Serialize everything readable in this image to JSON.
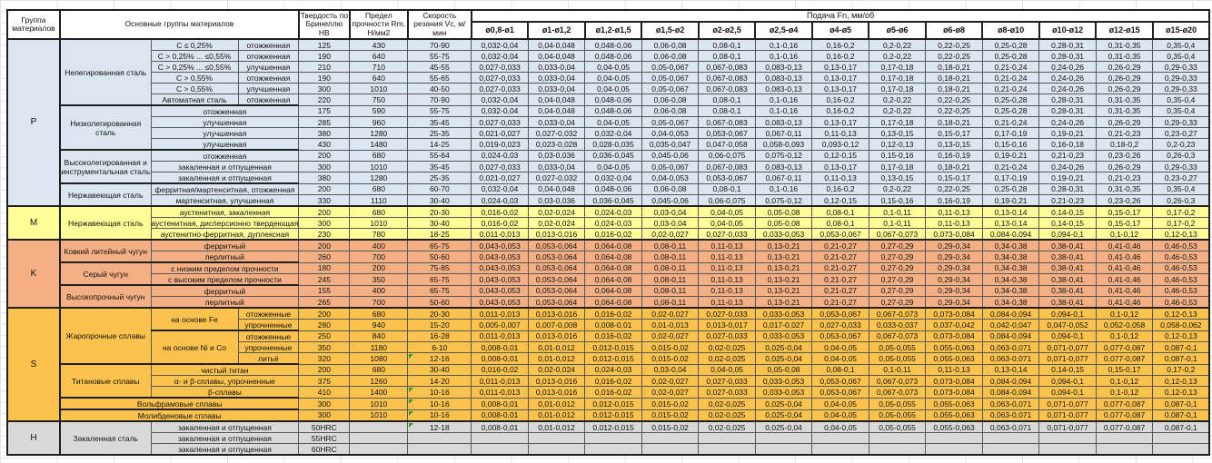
{
  "header": {
    "group": "Группа материалов",
    "materials": "Основные группы материалов",
    "hardness": "Твердость по Бринеллю HB",
    "strength": "Предел прочности Rm, Н/мм2",
    "speed": "Скорость резания Vc, м/мин",
    "feed": "Подача Fn, мм/об"
  },
  "diameters": [
    "ø0,8-ø1",
    "ø1-ø1,2",
    "ø1,2-ø1,5",
    "ø1,5-ø2",
    "ø2-ø2,5",
    "ø2,5-ø4",
    "ø4-ø5",
    "ø5-ø6",
    "ø6-ø8",
    "ø8-ø10",
    "ø10-ø12",
    "ø12-ø15",
    "ø15-ø20"
  ],
  "colors": {
    "section_p": "#dce6f1",
    "section_m": "#ffff99",
    "section_k": "#f4b084",
    "section_s": "#fbc34d",
    "section_h": "#d9d9d9",
    "flag": "#2f9e2f"
  },
  "feed_patterns": {
    "A": [
      "0,032-0,04",
      "0,04-0,048",
      "0,048-0,06",
      "0,06-0,08",
      "0,08-0,1",
      "0,1-0,16",
      "0,16-0,2",
      "0,2-0,22",
      "0,22-0,25",
      "0,25-0,28",
      "0,28-0,31",
      "0,31-0,35",
      "0,35-0,4"
    ],
    "B": [
      "0,027-0,033",
      "0,033-0,04",
      "0,04-0,05",
      "0,05-0,067",
      "0,067-0,083",
      "0,083-0,13",
      "0,13-0,17",
      "0,17-0,18",
      "0,18-0,21",
      "0,21-0,24",
      "0,24-0,26",
      "0,26-0,29",
      "0,29-0,33"
    ],
    "C": [
      "0,021-0,027",
      "0,027-0,032",
      "0,032-0,04",
      "0,04-0,053",
      "0,053-0,067",
      "0,067-0,11",
      "0,11-0,13",
      "0,13-0,15",
      "0,15-0,17",
      "0,17-0,19",
      "0,19-0,21",
      "0,21-0,23",
      "0,23-0,27"
    ],
    "D": [
      "0,019-0,023",
      "0,023-0,028",
      "0,028-0,035",
      "0,035-0,047",
      "0,047-0,058",
      "0,058-0,093",
      "0,093-0,12",
      "0,12-0,13",
      "0,13-0,15",
      "0,15-0,16",
      "0,16-0,18",
      "0,18-0,2",
      "0,2-0,23"
    ],
    "E": [
      "0,024-0,03",
      "0,03-0,036",
      "0,036-0,045",
      "0,045-0,06",
      "0,06-0,075",
      "0,075-0,12",
      "0,12-0,15",
      "0,15-0,16",
      "0,16-0,19",
      "0,19-0,21",
      "0,21-0,23",
      "0,23-0,26",
      "0,26-0,3"
    ],
    "F": [
      "0,016-0,02",
      "0,02-0,024",
      "0,024-0,03",
      "0,03-0,04",
      "0,04-0,05",
      "0,05-0,08",
      "0,08-0,1",
      "0,1-0,11",
      "0,11-0,13",
      "0,13-0,14",
      "0,14-0,15",
      "0,15-0,17",
      "0,17-0,2"
    ],
    "G": [
      "0,011-0,013",
      "0,013-0,016",
      "0,016-0,02",
      "0,02-0,027",
      "0,027-0,033",
      "0,033-0,053",
      "0,053-0,067",
      "0,067-0,073",
      "0,073-0,084",
      "0,084-0,094",
      "0,094-0,1",
      "0,1-0,12",
      "0,12-0,13"
    ],
    "H": [
      "0,043-0,053",
      "0,053-0,064",
      "0,064-0,08",
      "0,08-0,11",
      "0,11-0,13",
      "0,13-0,21",
      "0,21-0,27",
      "0,27-0,29",
      "0,29-0,34",
      "0,34-0,38",
      "0,38-0,41",
      "0,41-0,46",
      "0,46-0,53"
    ],
    "I": [
      "0,005-0,007",
      "0,007-0,008",
      "0,008-0,01",
      "0,01-0,013",
      "0,013-0,017",
      "0,017-0,027",
      "0,027-0,033",
      "0,033-0,037",
      "0,037-0,042",
      "0,042-0,047",
      "0,047-0,052",
      "0,052-0,058",
      "0,058-0,062"
    ],
    "J": [
      "0,008-0,01",
      "0,01-0,012",
      "0,012-0,015",
      "0,015-0,02",
      "0,02-0,025",
      "0,025-0,04",
      "0,04-0,05",
      "0,05-0,055",
      "0,055-0,063",
      "0,063-0,071",
      "0,071-0,077",
      "0,077-0,087",
      "0,087-0,1"
    ],
    "X": [
      "",
      "",
      "",
      "",
      "",
      "",
      "",
      "",
      "",
      "",
      "",
      "",
      ""
    ]
  },
  "sections": [
    {
      "group": "P",
      "theme": "p",
      "rows": [
        {
          "left": [
            {
              "t": "Нелегированная сталь",
              "rs": 6
            },
            {
              "t": "C ≤ 0,25%"
            },
            {
              "t": "отожженная"
            }
          ],
          "hb": "125",
          "rm": "430",
          "vc": "70-90",
          "fp": "A"
        },
        {
          "left": [
            {
              "t": "C > 0,25% ... ≤0,55%"
            },
            {
              "t": "отожженная"
            }
          ],
          "hb": "190",
          "rm": "640",
          "vc": "55-75",
          "fp": "A"
        },
        {
          "left": [
            {
              "t": "C > 0,25% ... ≤0,55%"
            },
            {
              "t": "улучшенная"
            }
          ],
          "hb": "210",
          "rm": "710",
          "vc": "45-55",
          "fp": "B"
        },
        {
          "left": [
            {
              "t": "C > 0,55%"
            },
            {
              "t": "отожженная"
            }
          ],
          "hb": "190",
          "rm": "640",
          "vc": "55-65",
          "fp": "B"
        },
        {
          "left": [
            {
              "t": "C > 0,55%"
            },
            {
              "t": "улучшенная"
            }
          ],
          "hb": "300",
          "rm": "1010",
          "vc": "40-50",
          "fp": "B"
        },
        {
          "left": [
            {
              "t": "Автоматная сталь"
            },
            {
              "t": "отожженная"
            }
          ],
          "hb": "220",
          "rm": "750",
          "vc": "70-90",
          "fp": "A"
        },
        {
          "fs": true,
          "left": [
            {
              "t": "Низколегированная сталь",
              "rs": 4
            },
            {
              "t": "отожженная",
              "cs": 2
            }
          ],
          "hb": "175",
          "rm": "590",
          "vc": "55-75",
          "fp": "A"
        },
        {
          "left": [
            {
              "t": "улучшенная",
              "cs": 2
            }
          ],
          "hb": "285",
          "rm": "960",
          "vc": "35-45",
          "fp": "B"
        },
        {
          "left": [
            {
              "t": "улучшенная",
              "cs": 2
            }
          ],
          "hb": "380",
          "rm": "1280",
          "vc": "25-35",
          "fp": "C"
        },
        {
          "left": [
            {
              "t": "улучшенная",
              "cs": 2
            }
          ],
          "hb": "430",
          "rm": "1480",
          "vc": "14-25",
          "fp": "D"
        },
        {
          "fs": true,
          "left": [
            {
              "t": "Высоколегированная и инструментальная сталь",
              "rs": 3
            },
            {
              "t": "отожженная",
              "cs": 2
            }
          ],
          "hb": "200",
          "rm": "680",
          "vc": "55-64",
          "fp": "E"
        },
        {
          "left": [
            {
              "t": "закаленная и отпущенная",
              "cs": 2
            }
          ],
          "hb": "300",
          "rm": "1010",
          "vc": "35-45",
          "fp": "B"
        },
        {
          "left": [
            {
              "t": "закаленная и отпущенная",
              "cs": 2
            }
          ],
          "hb": "380",
          "rm": "1280",
          "vc": "25-35",
          "fp": "C"
        },
        {
          "fs": true,
          "left": [
            {
              "t": "Нержавеющая сталь",
              "rs": 2
            },
            {
              "t": "ферритная/мартенситная, отожженная",
              "cs": 2
            }
          ],
          "hb": "200",
          "rm": "680",
          "vc": "60-70",
          "fp": "A"
        },
        {
          "left": [
            {
              "t": "мартенситная, улучшенная",
              "cs": 2
            }
          ],
          "hb": "330",
          "rm": "1110",
          "vc": "30-40",
          "fp": "E"
        }
      ]
    },
    {
      "group": "M",
      "theme": "m",
      "rows": [
        {
          "left": [
            {
              "t": "Нержавеющая сталь",
              "rs": 3
            },
            {
              "t": "аустенитная, закаленная",
              "cs": 2
            }
          ],
          "hb": "200",
          "rm": "680",
          "vc": "20-30",
          "fp": "F"
        },
        {
          "left": [
            {
              "t": "аустенитная, дисперсионно твердеющая",
              "cs": 2
            }
          ],
          "hb": "300",
          "rm": "1010",
          "vc": "30-40",
          "fp": "F"
        },
        {
          "left": [
            {
              "t": "аустенитно-ферритная, дуплексная",
              "cs": 2
            }
          ],
          "hb": "230",
          "rm": "780",
          "vc": "18-25",
          "fp": "G"
        }
      ]
    },
    {
      "group": "K",
      "theme": "k",
      "rows": [
        {
          "left": [
            {
              "t": "Ковкий литейный чугун",
              "rs": 2
            },
            {
              "t": "ферритный",
              "cs": 2
            }
          ],
          "hb": "200",
          "rm": "400",
          "vc": "65-75",
          "fp": "H"
        },
        {
          "left": [
            {
              "t": "перлитный",
              "cs": 2
            }
          ],
          "hb": "260",
          "rm": "700",
          "vc": "50-60",
          "fp": "H"
        },
        {
          "fs": true,
          "left": [
            {
              "t": "Серый чугун",
              "rs": 2
            },
            {
              "t": "с низким пределом прочности",
              "cs": 2
            }
          ],
          "hb": "180",
          "rm": "200",
          "vc": "75-85",
          "fp": "H"
        },
        {
          "left": [
            {
              "t": "с высоким пределом прочности",
              "cs": 2
            }
          ],
          "hb": "245",
          "rm": "350",
          "vc": "65-75",
          "fp": "H"
        },
        {
          "fs": true,
          "left": [
            {
              "t": "Высокопрочный чугун",
              "rs": 2
            },
            {
              "t": "ферритный",
              "cs": 2
            }
          ],
          "hb": "155",
          "rm": "400",
          "vc": "65-75",
          "fp": "H"
        },
        {
          "left": [
            {
              "t": "перлитный",
              "cs": 2
            }
          ],
          "hb": "265",
          "rm": "700",
          "vc": "50-60",
          "fp": "H"
        }
      ]
    },
    {
      "group": "S",
      "theme": "s",
      "rows": [
        {
          "left": [
            {
              "t": "Жаропрочные сплавы",
              "rs": 5
            },
            {
              "t": "на основе Fe",
              "rs": 2
            },
            {
              "t": "отожженные"
            }
          ],
          "hb": "200",
          "rm": "680",
          "vc": "20-30",
          "fp": "G"
        },
        {
          "left": [
            {
              "t": "упрочненные"
            }
          ],
          "hb": "280",
          "rm": "940",
          "vc": "15-20",
          "fp": "I"
        },
        {
          "fs": true,
          "left": [
            {
              "t": "на основе Ni и Co",
              "rs": 3
            },
            {
              "t": "отожженные"
            }
          ],
          "hb": "250",
          "rm": "840",
          "vc": "16-28",
          "fp": "G"
        },
        {
          "left": [
            {
              "t": "упрочненные"
            }
          ],
          "hb": "350",
          "rm": "1180",
          "vc": "6-10",
          "fp": "J"
        },
        {
          "left": [
            {
              "t": "литьё"
            }
          ],
          "hb": "320",
          "rm": "1080",
          "vc": "12-16",
          "fp": "J",
          "flag": true
        },
        {
          "fs": true,
          "left": [
            {
              "t": "Титановые сплавы",
              "rs": 3
            },
            {
              "t": "чистый титан",
              "cs": 2
            }
          ],
          "hb": "200",
          "rm": "680",
          "vc": "30-40",
          "fp": "F"
        },
        {
          "left": [
            {
              "t": "α- и β-сплавы, упрочненные",
              "cs": 2
            }
          ],
          "hb": "375",
          "rm": "1260",
          "vc": "14-20",
          "fp": "G"
        },
        {
          "left": [
            {
              "t": "β-сплавы",
              "cs": 2
            }
          ],
          "hb": "410",
          "rm": "1400",
          "vc": "10-16",
          "fp": "G",
          "flag": true
        },
        {
          "fs": true,
          "left": [
            {
              "t": "Вольфрамовые сплавы",
              "cs": 3
            }
          ],
          "hb": "300",
          "rm": "1010",
          "vc": "10-16",
          "fp": "J",
          "flag": true
        },
        {
          "fs": true,
          "left": [
            {
              "t": "Молибденовые сплавы",
              "cs": 3
            }
          ],
          "hb": "300",
          "rm": "1010",
          "vc": "10-16",
          "fp": "J",
          "flag": true
        }
      ]
    },
    {
      "group": "H",
      "theme": "h",
      "rows": [
        {
          "left": [
            {
              "t": "Закаленная сталь",
              "rs": 3
            },
            {
              "t": "закаленная и отпущенная",
              "cs": 2
            }
          ],
          "hb": "50HRC",
          "rm": "",
          "vc": "12-18",
          "fp": "J",
          "flag": true
        },
        {
          "left": [
            {
              "t": "закаленная и отпущенная",
              "cs": 2
            }
          ],
          "hb": "55HRC",
          "rm": "",
          "vc": "",
          "fp": "X"
        },
        {
          "left": [
            {
              "t": "закаленная и отпущенная",
              "cs": 2
            }
          ],
          "hb": "60HRC",
          "rm": "",
          "vc": "",
          "fp": "X"
        }
      ]
    }
  ]
}
